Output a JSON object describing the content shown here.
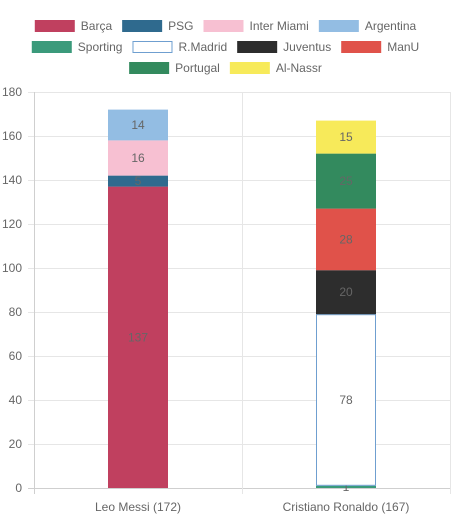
{
  "chart_data": {
    "type": "bar",
    "stacked": true,
    "categories": [
      "Leo Messi (172)",
      "Cristiano Ronaldo (167)"
    ],
    "ylim": [
      0,
      180
    ],
    "y_ticks": [
      0,
      20,
      40,
      60,
      80,
      100,
      120,
      140,
      160,
      180
    ],
    "grid": true,
    "legend_position": "top",
    "series": [
      {
        "name": "Barça",
        "color": "#c0405f",
        "fill": "#c0405f",
        "values": [
          137,
          0
        ]
      },
      {
        "name": "PSG",
        "color": "#2f6a8e",
        "fill": "#2f6a8e",
        "values": [
          5,
          0
        ]
      },
      {
        "name": "Inter Miami",
        "color": "#f7c0d2",
        "fill": "#f7c0d2",
        "values": [
          16,
          0
        ]
      },
      {
        "name": "Argentina",
        "color": "#93bde3",
        "fill": "#93bde3",
        "values": [
          14,
          0
        ]
      },
      {
        "name": "Sporting",
        "color": "#3b9a7b",
        "fill": "#3b9a7b",
        "values": [
          0,
          1
        ]
      },
      {
        "name": "R.Madrid",
        "color": "#6f9fd0",
        "fill": "#ffffff",
        "values": [
          0,
          78
        ]
      },
      {
        "name": "Juventus",
        "color": "#2d2d2d",
        "fill": "#2d2d2d",
        "values": [
          0,
          20
        ]
      },
      {
        "name": "ManU",
        "color": "#e0524a",
        "fill": "#e0524a",
        "values": [
          0,
          28
        ]
      },
      {
        "name": "Portugal",
        "color": "#338a5e",
        "fill": "#338a5e",
        "values": [
          0,
          25
        ]
      },
      {
        "name": "Al-Nassr",
        "color": "#f7ea5a",
        "fill": "#f7ea5a",
        "values": [
          0,
          15
        ]
      }
    ]
  }
}
